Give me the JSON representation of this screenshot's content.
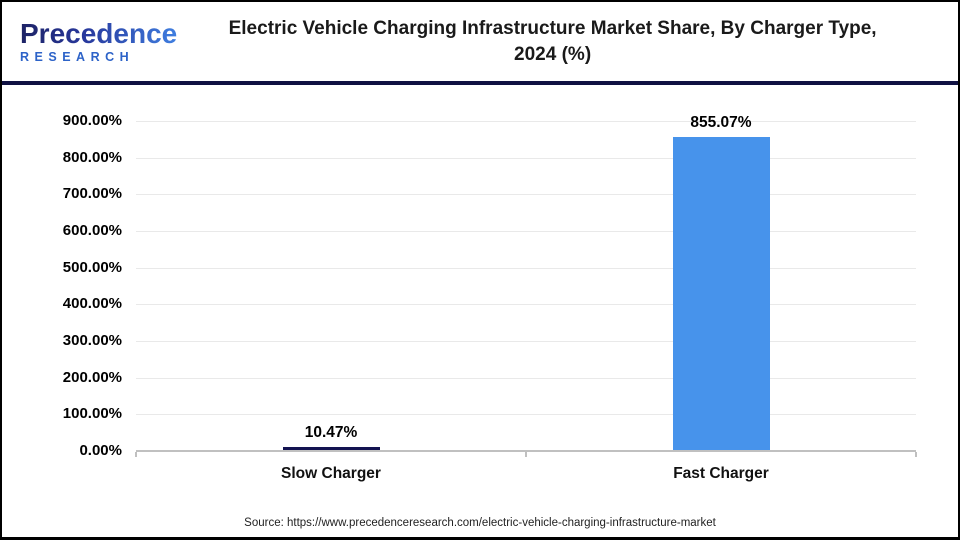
{
  "header": {
    "logo": {
      "name": "Precedence",
      "subname": "RESEARCH"
    },
    "title_line1": "Electric Vehicle Charging Infrastructure Market Share, By Charger Type,",
    "title_line2": "2024 (%)"
  },
  "chart_data": {
    "type": "bar",
    "title": "Electric Vehicle Charging Infrastructure Market Share, By Charger Type, 2024 (%)",
    "categories": [
      "Slow Charger",
      "Fast Charger"
    ],
    "values": [
      10.47,
      855.07
    ],
    "value_labels": [
      "10.47%",
      "855.07%"
    ],
    "bar_colors": [
      "#131351",
      "#4793eb"
    ],
    "xlabel": "",
    "ylabel": "",
    "ylim": [
      0,
      900
    ],
    "ytick_step": 100,
    "ytick_labels": [
      "0.00%",
      "100.00%",
      "200.00%",
      "300.00%",
      "400.00%",
      "500.00%",
      "600.00%",
      "700.00%",
      "800.00%",
      "900.00%"
    ],
    "grid": true,
    "legend": false
  },
  "colors": {
    "divider_navy": "#0f1142",
    "gridline": "#e9e9e9",
    "axis_line": "#c0c0c0",
    "slow_bar": "#131351",
    "fast_bar": "#4793eb",
    "logo_research_blue": "#2d63c8"
  },
  "footer": {
    "source": "Source: https://www.precedenceresearch.com/electric-vehicle-charging-infrastructure-market"
  }
}
